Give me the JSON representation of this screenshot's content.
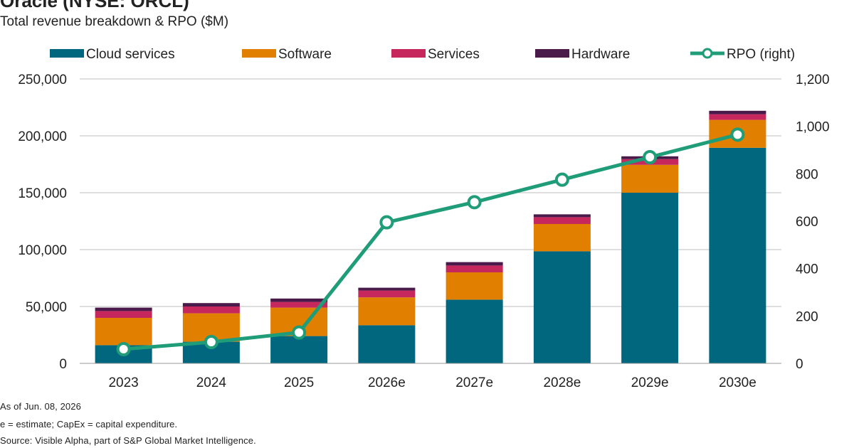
{
  "chart_data": {
    "type": "bar",
    "stacked": true,
    "title": "Oracle (NYSE: ORCL)",
    "subtitle": "Total revenue breakdown & RPO ($M)",
    "categories": [
      "2023",
      "2024",
      "2025",
      "2026e",
      "2027e",
      "2028e",
      "2029e",
      "2030e"
    ],
    "series": [
      {
        "name": "Cloud services",
        "color": "#00677f",
        "values": [
          16000,
          19000,
          24000,
          33500,
          56000,
          98500,
          150000,
          189500
        ]
      },
      {
        "name": "Software",
        "color": "#e07f00",
        "values": [
          24000,
          25000,
          25000,
          24500,
          24000,
          24000,
          24500,
          24500
        ]
      },
      {
        "name": "Services",
        "color": "#c6285e",
        "values": [
          6000,
          6000,
          5000,
          6000,
          6000,
          6000,
          5000,
          5000
        ]
      },
      {
        "name": "Hardware",
        "color": "#4a1a4a",
        "values": [
          3000,
          3000,
          3000,
          2500,
          3000,
          2500,
          2500,
          3000
        ]
      }
    ],
    "line_series": {
      "name": "RPO (right)",
      "color": "#1f9c78",
      "axis": "right",
      "values": [
        60,
        90,
        130,
        595,
        680,
        775,
        870,
        965
      ]
    },
    "y_left": {
      "ylim": [
        0,
        250000
      ],
      "ticks": [
        0,
        50000,
        100000,
        150000,
        200000,
        250000
      ],
      "tick_labels": [
        "0",
        "50,000",
        "100,000",
        "150,000",
        "200,000",
        "250,000"
      ]
    },
    "y_right": {
      "ylim": [
        0,
        1200
      ],
      "ticks": [
        0,
        200,
        400,
        600,
        800,
        1000,
        1200
      ],
      "tick_labels": [
        "0",
        "200",
        "400",
        "600",
        "800",
        "1,000",
        "1,200"
      ]
    },
    "grid": true,
    "legend_position": "top"
  },
  "notes": {
    "line1": "As of Jun. 08, 2026",
    "line2": "e = estimate; CapEx = capital expenditure.",
    "line3": "Source: Visible Alpha, part of S&P Global Market Intelligence."
  }
}
